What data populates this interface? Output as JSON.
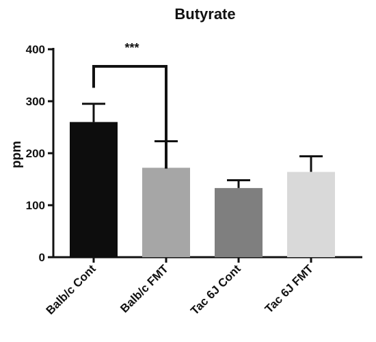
{
  "chart_data": {
    "type": "bar",
    "title": "Butyrate",
    "xlabel": "",
    "ylabel": "ppm",
    "ylim": [
      0,
      400
    ],
    "yticks": [
      0,
      100,
      200,
      300,
      400
    ],
    "categories": [
      "Balb/c Cont",
      "Balb/c FMT",
      "Tac 6J Cont",
      "Tac 6J FMT"
    ],
    "values": [
      260,
      172,
      133,
      164
    ],
    "error_upper": [
      295,
      223,
      148,
      194
    ],
    "bar_colors": [
      "#0d0d0d",
      "#a6a6a6",
      "#7f7f7f",
      "#d9d9d9"
    ],
    "annotations": [
      {
        "text": "***",
        "from_category": "Balb/c Cont",
        "to_category": "Balb/c FMT"
      }
    ],
    "grid": false,
    "legend": "none"
  }
}
